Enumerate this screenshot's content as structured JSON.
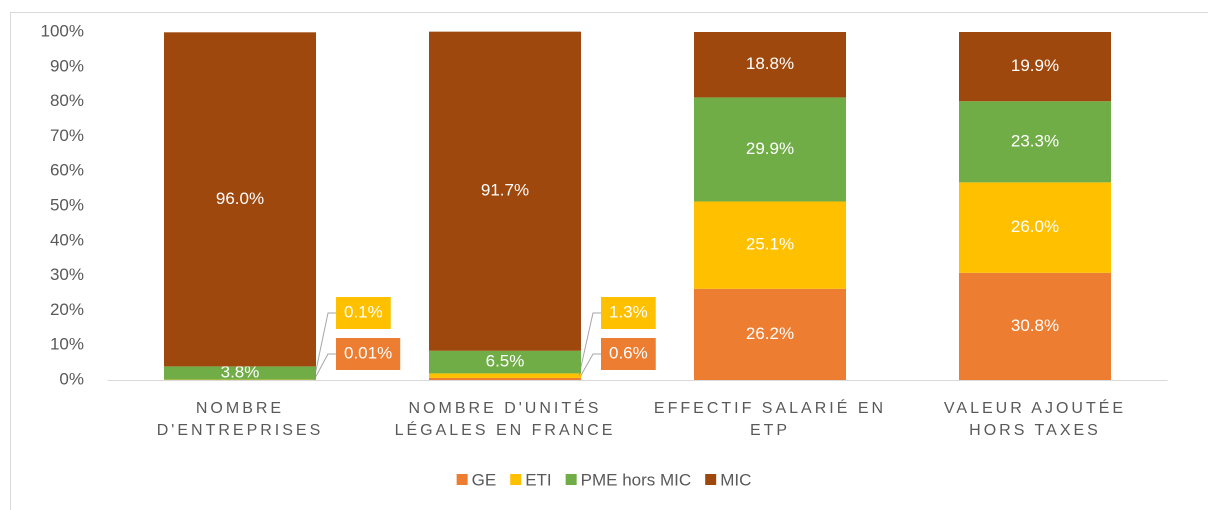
{
  "chart_data": {
    "type": "stacked_bar_100",
    "categories": [
      "NOMBRE D'ENTREPRISES",
      "NOMBRE D'UNITÉS LÉGALES EN FRANCE",
      "EFFECTIF SALARIÉ EN ETP",
      "VALEUR AJOUTÉE HORS TAXES"
    ],
    "series": [
      {
        "name": "GE",
        "color": "#ed7d31",
        "values": [
          0.01,
          0.6,
          26.2,
          30.8
        ],
        "value_labels": [
          "0.01%",
          "0.6%",
          "26.2%",
          "30.8%"
        ]
      },
      {
        "name": "ETI",
        "color": "#ffc000",
        "values": [
          0.1,
          1.3,
          25.1,
          26.0
        ],
        "value_labels": [
          "0.1%",
          "1.3%",
          "25.1%",
          "26.0%"
        ]
      },
      {
        "name": "PME hors MIC",
        "color": "#70ad47",
        "values": [
          3.8,
          6.5,
          29.9,
          23.3
        ],
        "value_labels": [
          "3.8%",
          "6.5%",
          "29.9%",
          "23.3%"
        ]
      },
      {
        "name": "MIC",
        "color": "#9e480e",
        "values": [
          96.0,
          91.7,
          18.8,
          19.9
        ],
        "value_labels": [
          "96.0%",
          "91.7%",
          "18.8%",
          "19.9%"
        ]
      }
    ],
    "ylim": [
      0,
      100
    ],
    "yticks": [
      {
        "value": 0,
        "label": "0%"
      },
      {
        "value": 10,
        "label": "10%"
      },
      {
        "value": 20,
        "label": "20%"
      },
      {
        "value": 30,
        "label": "30%"
      },
      {
        "value": 40,
        "label": "40%"
      },
      {
        "value": 50,
        "label": "50%"
      },
      {
        "value": 60,
        "label": "60%"
      },
      {
        "value": 70,
        "label": "70%"
      },
      {
        "value": 80,
        "label": "80%"
      },
      {
        "value": 90,
        "label": "90%"
      },
      {
        "value": 100,
        "label": "100%"
      }
    ],
    "legend": "bottom"
  }
}
